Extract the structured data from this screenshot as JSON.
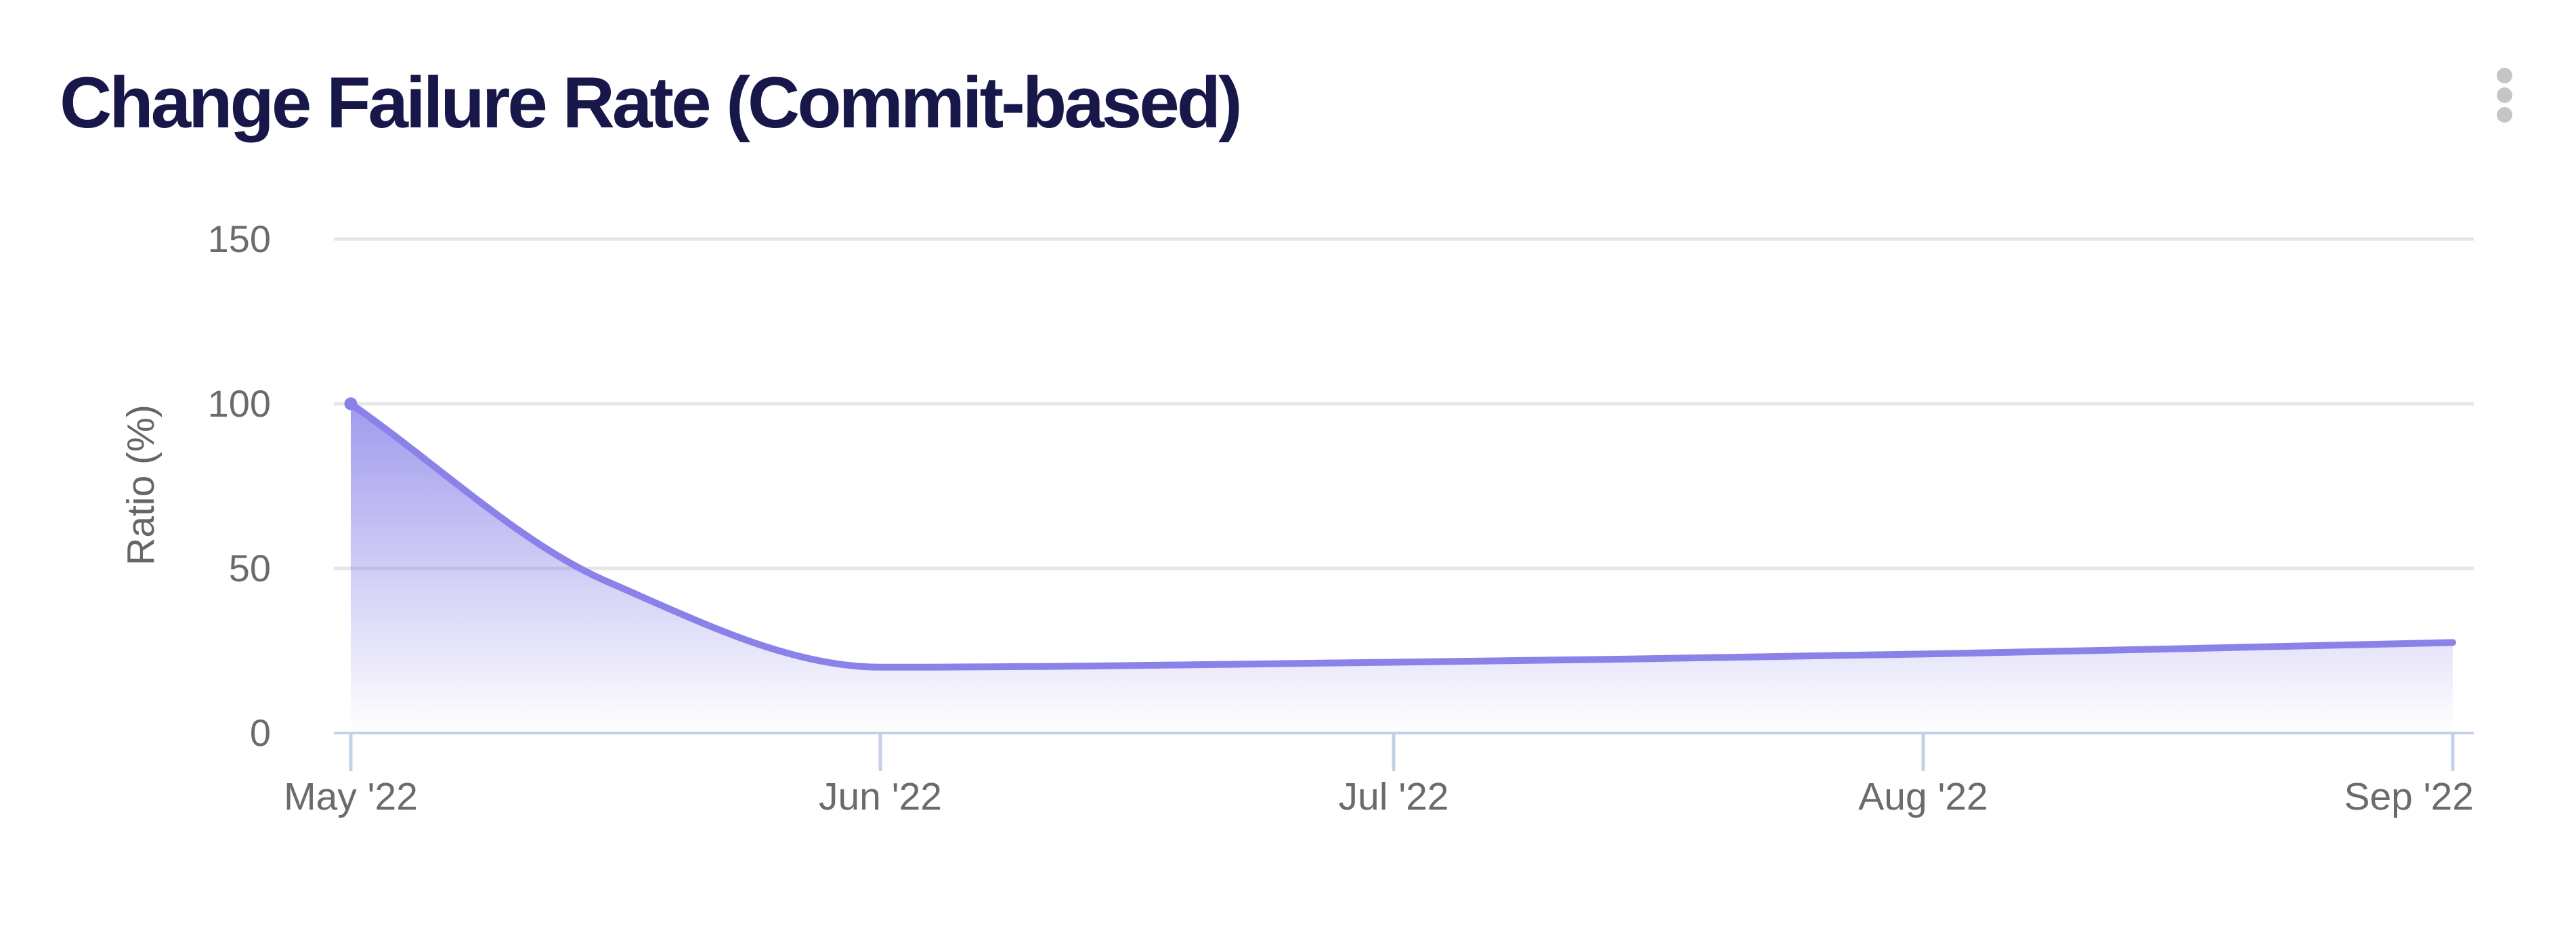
{
  "header": {
    "title": "Change Failure Rate (Commit-based)"
  },
  "icons": {
    "card_menu": "kebab-vertical"
  },
  "colors": {
    "title_text": "#17174A",
    "line": "#8A82E8",
    "area_fill_top": "#867EE7",
    "axis_line": "#C5D0E8",
    "gridline": "#E6E6E6",
    "tick_text": "#6B6B6B",
    "menu_dots": "#C5C5C5"
  },
  "chart_data": {
    "type": "area",
    "title": "Change Failure Rate (Commit-based)",
    "xlabel": "",
    "ylabel": "Ratio (%)",
    "ylim": [
      0,
      150
    ],
    "yticks": [
      0,
      50,
      100,
      150
    ],
    "ytick_labels": [
      "0",
      "50",
      "100",
      "150"
    ],
    "x_tick_labels": [
      "May '22",
      "Jun '22",
      "Jul '22",
      "Aug '22",
      "Sep '22"
    ],
    "grid": "horizontal",
    "legend": "none",
    "series": [
      {
        "name": "Change Failure Rate",
        "unit": "%",
        "points": [
          {
            "x": "2022-05-01",
            "y": 100
          },
          {
            "x": "2022-05-16",
            "y": 46
          },
          {
            "x": "2022-06-01",
            "y": 20
          },
          {
            "x": "2022-07-01",
            "y": 21.5
          },
          {
            "x": "2022-08-01",
            "y": 24
          },
          {
            "x": "2022-09-01",
            "y": 27.5
          }
        ]
      }
    ]
  }
}
